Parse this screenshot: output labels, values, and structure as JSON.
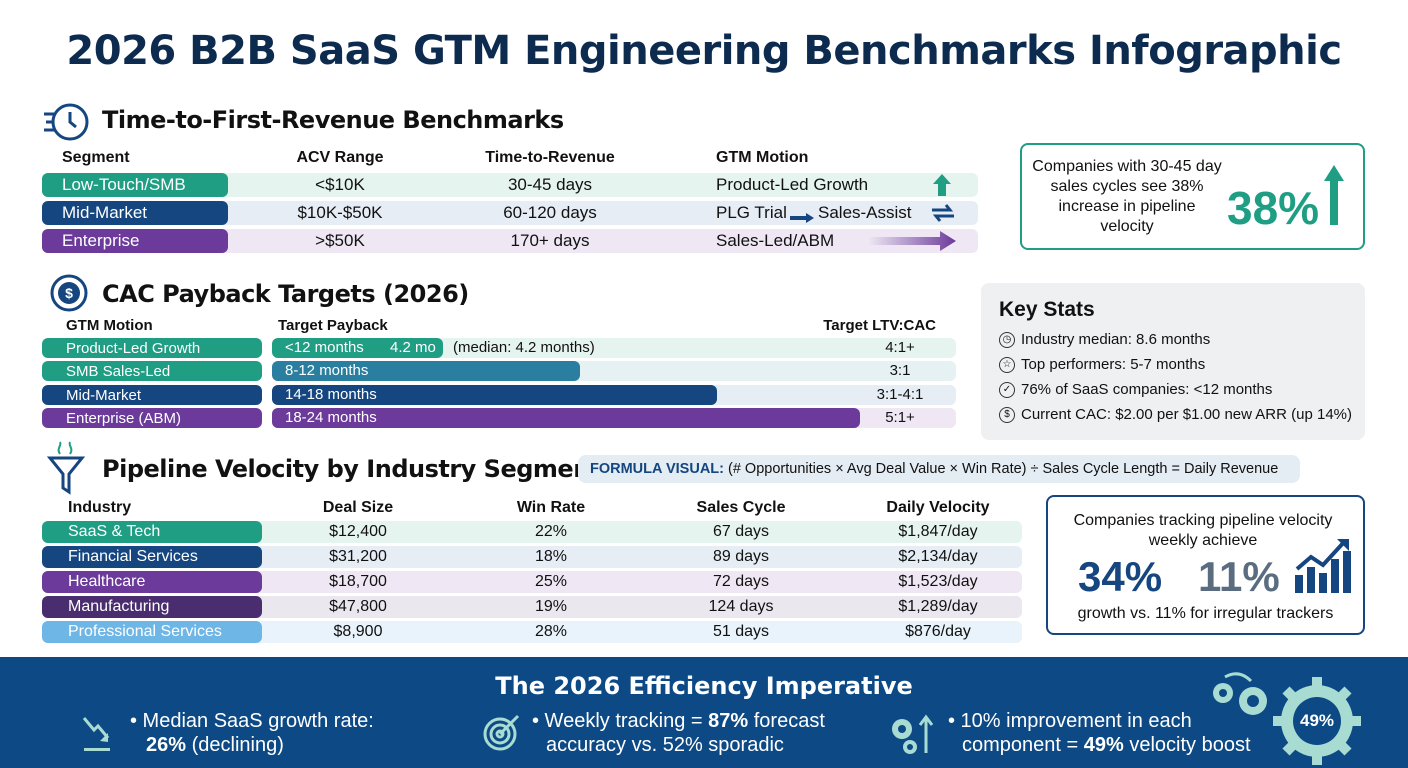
{
  "title": "2026 B2B SaaS GTM Engineering Benchmarks Infographic",
  "colors": {
    "green": "#1f9e84",
    "navy": "#15467f",
    "purple": "#6b3a9a",
    "dark_purple": "#4a2d6e",
    "light_blue": "#6db6e6",
    "band": "#0d4a85"
  },
  "ttr": {
    "heading": "Time-to-First-Revenue Benchmarks",
    "headers": [
      "Segment",
      "ACV Range",
      "Time-to-Revenue",
      "GTM Motion"
    ],
    "rows": [
      {
        "segment": "Low-Touch/SMB",
        "acv": "<$10K",
        "ttr": "30-45 days",
        "motion": "Product-Led Growth",
        "icon": "arrow-up-icon"
      },
      {
        "segment": "Mid-Market",
        "acv": "$10K-$50K",
        "ttr": "60-120 days",
        "motion": "PLG Trial",
        "motion2": "Sales-Assist",
        "icon": "swap-icon"
      },
      {
        "segment": "Enterprise",
        "acv": ">$50K",
        "ttr": "170+ days",
        "motion": "Sales-Led/ABM",
        "icon": "arrow-right-icon"
      }
    ]
  },
  "callout1": {
    "text": "Companies with 30-45 day sales cycles see 38% increase in pipeline velocity",
    "value": "38%"
  },
  "cac": {
    "heading": "CAC Payback Targets (2026)",
    "headers": [
      "GTM Motion",
      "Target Payback",
      "Target LTV:CAC"
    ],
    "rows": [
      {
        "motion": "Product-Led Growth",
        "payback": "<12 months",
        "bar_label": "4.2 mo",
        "note": "(median: 4.2 months)",
        "ltv": "4:1+",
        "fill": 0.25
      },
      {
        "motion": "SMB Sales-Led",
        "payback": "8-12 months",
        "ltv": "3:1",
        "fill": 0.45
      },
      {
        "motion": "Mid-Market",
        "payback": "14-18 months",
        "ltv": "3:1-4:1",
        "fill": 0.65
      },
      {
        "motion": "Enterprise (ABM)",
        "payback": "18-24 months",
        "ltv": "5:1+",
        "fill": 0.86
      }
    ]
  },
  "key_stats": {
    "heading": "Key Stats",
    "items": [
      {
        "icon": "clock-icon",
        "text": "Industry median: 8.6 months"
      },
      {
        "icon": "star-icon",
        "text": "Top performers: 5-7 months"
      },
      {
        "icon": "check-icon",
        "text": "76% of SaaS companies: <12 months"
      },
      {
        "icon": "dollar-icon",
        "text": "Current CAC: $2.00 per $1.00 new ARR (up 14%)"
      }
    ]
  },
  "pipeline": {
    "heading": "Pipeline Velocity by Industry Segment",
    "formula_label": "FORMULA VISUAL:",
    "formula": "(# Opportunities × Avg Deal Value × Win Rate) ÷ Sales Cycle Length = Daily Revenue",
    "headers": [
      "Industry",
      "Deal Size",
      "Win Rate",
      "Sales Cycle",
      "Daily Velocity"
    ],
    "rows": [
      {
        "industry": "SaaS & Tech",
        "deal": "$12,400",
        "win": "22%",
        "cycle": "67 days",
        "velocity": "$1,847/day"
      },
      {
        "industry": "Financial Services",
        "deal": "$31,200",
        "win": "18%",
        "cycle": "89 days",
        "velocity": "$2,134/day"
      },
      {
        "industry": "Healthcare",
        "deal": "$18,700",
        "win": "25%",
        "cycle": "72 days",
        "velocity": "$1,523/day"
      },
      {
        "industry": "Manufacturing",
        "deal": "$47,800",
        "win": "19%",
        "cycle": "124 days",
        "velocity": "$1,289/day"
      },
      {
        "industry": "Professional Services",
        "deal": "$8,900",
        "win": "28%",
        "cycle": "51 days",
        "velocity": "$876/day"
      }
    ]
  },
  "callout2": {
    "top": "Companies tracking pipeline velocity weekly achieve",
    "v1": "34%",
    "v2": "11%",
    "bottom": "growth vs. 11% for irregular trackers"
  },
  "footer": {
    "heading": "The 2026 Efficiency Imperative",
    "items": [
      {
        "pre": "• Median SaaS growth rate:",
        "bold": "26%",
        "post": " (declining)"
      },
      {
        "pre": "• Weekly tracking = ",
        "bold": "87%",
        "post": " forecast accuracy vs. 52% sporadic"
      },
      {
        "pre": "• 10% improvement in each component = ",
        "bold": "49%",
        "post": " velocity boost"
      }
    ],
    "gear_value": "49%"
  }
}
